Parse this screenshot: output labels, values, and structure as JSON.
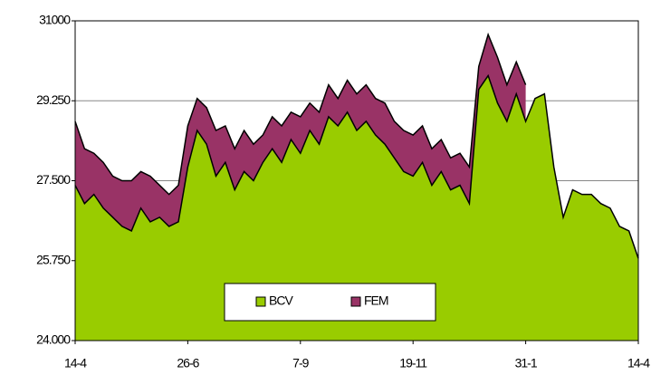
{
  "chart_data": {
    "type": "area",
    "categories": [
      "14-4",
      null,
      null,
      null,
      null,
      null,
      null,
      null,
      null,
      null,
      null,
      null,
      "26-6",
      null,
      null,
      null,
      null,
      null,
      null,
      null,
      null,
      null,
      null,
      null,
      "7-9",
      null,
      null,
      null,
      null,
      null,
      null,
      null,
      null,
      null,
      null,
      null,
      "19-11",
      null,
      null,
      null,
      null,
      null,
      null,
      null,
      null,
      null,
      null,
      null,
      "31-1",
      null,
      null,
      null,
      null,
      null,
      null,
      null,
      null,
      null,
      null,
      null,
      "14-4"
    ],
    "series": [
      {
        "name": "FEM",
        "color": "#993366",
        "values": [
          28800,
          28200,
          28100,
          27900,
          27600,
          27500,
          27500,
          27700,
          27600,
          27400,
          27200,
          27400,
          28700,
          29300,
          29100,
          28600,
          28700,
          28200,
          28600,
          28300,
          28500,
          28900,
          28700,
          29000,
          28900,
          29200,
          29000,
          29600,
          29300,
          29700,
          29400,
          29600,
          29300,
          29200,
          28800,
          28600,
          28500,
          28700,
          28200,
          28400,
          28000,
          28100,
          27800,
          30000,
          30700,
          30200,
          29600,
          30100,
          29600,
          null,
          null,
          null,
          null,
          null,
          null,
          null,
          null,
          null,
          null,
          null,
          null
        ]
      },
      {
        "name": "BCV",
        "color": "#99cc00",
        "values": [
          27400,
          27000,
          27200,
          26900,
          26700,
          26500,
          26400,
          26900,
          26600,
          26700,
          26500,
          26600,
          27800,
          28600,
          28300,
          27600,
          27900,
          27300,
          27700,
          27500,
          27900,
          28200,
          27900,
          28400,
          28100,
          28600,
          28300,
          28900,
          28700,
          29000,
          28600,
          28800,
          28500,
          28300,
          28000,
          27700,
          27600,
          27900,
          27400,
          27700,
          27300,
          27400,
          27000,
          29500,
          29800,
          29200,
          28800,
          29400,
          28800,
          29300,
          29400,
          27800,
          26700,
          27300,
          27200,
          27200,
          27000,
          26900,
          26500,
          26400,
          25800
        ]
      }
    ],
    "ylim": [
      24000,
      31000
    ],
    "yticks": [
      {
        "value": 24000,
        "label": "24.000"
      },
      {
        "value": 25750,
        "label": "25.750"
      },
      {
        "value": 27500,
        "label": "27.500"
      },
      {
        "value": 29250,
        "label": "29.250"
      },
      31000
    ],
    "grid": true
  }
}
